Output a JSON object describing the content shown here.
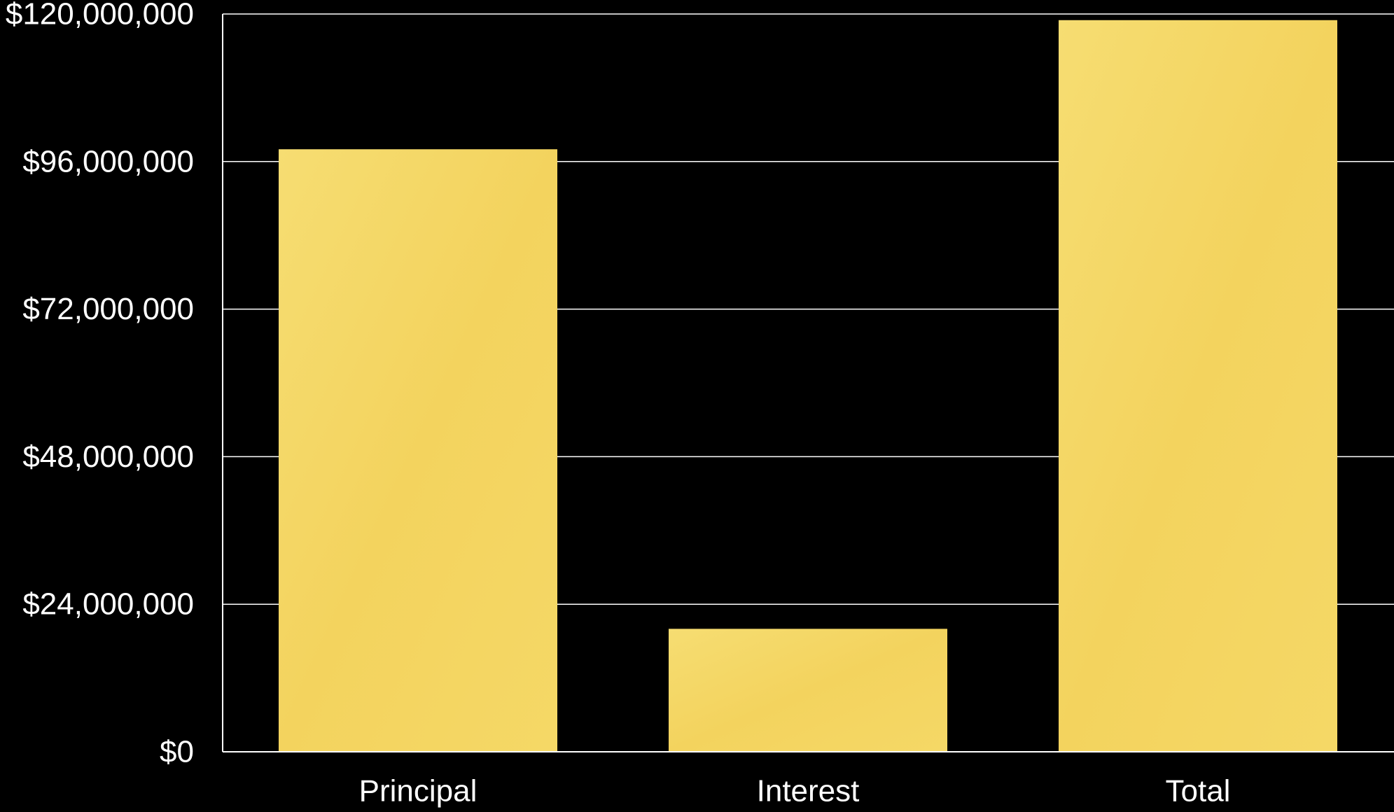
{
  "colors": {
    "background": "#000000",
    "bar_fill": "#F5DA6A",
    "bar_texture": "#F2D15A",
    "gridline": "#FFFFFF",
    "text": "#FFFFFF"
  },
  "chart_data": {
    "type": "bar",
    "categories": [
      "Principal",
      "Interest",
      "Total"
    ],
    "values": [
      98000000,
      20000000,
      119000000
    ],
    "ylim": [
      0,
      120000000
    ],
    "yticks": [
      0,
      24000000,
      48000000,
      72000000,
      96000000,
      120000000
    ],
    "ytick_labels": [
      "$0",
      "$24,000,000",
      "$48,000,000",
      "$72,000,000",
      "$96,000,000",
      "$120,000,000"
    ],
    "grid": true,
    "title": "",
    "xlabel": "",
    "ylabel": ""
  }
}
